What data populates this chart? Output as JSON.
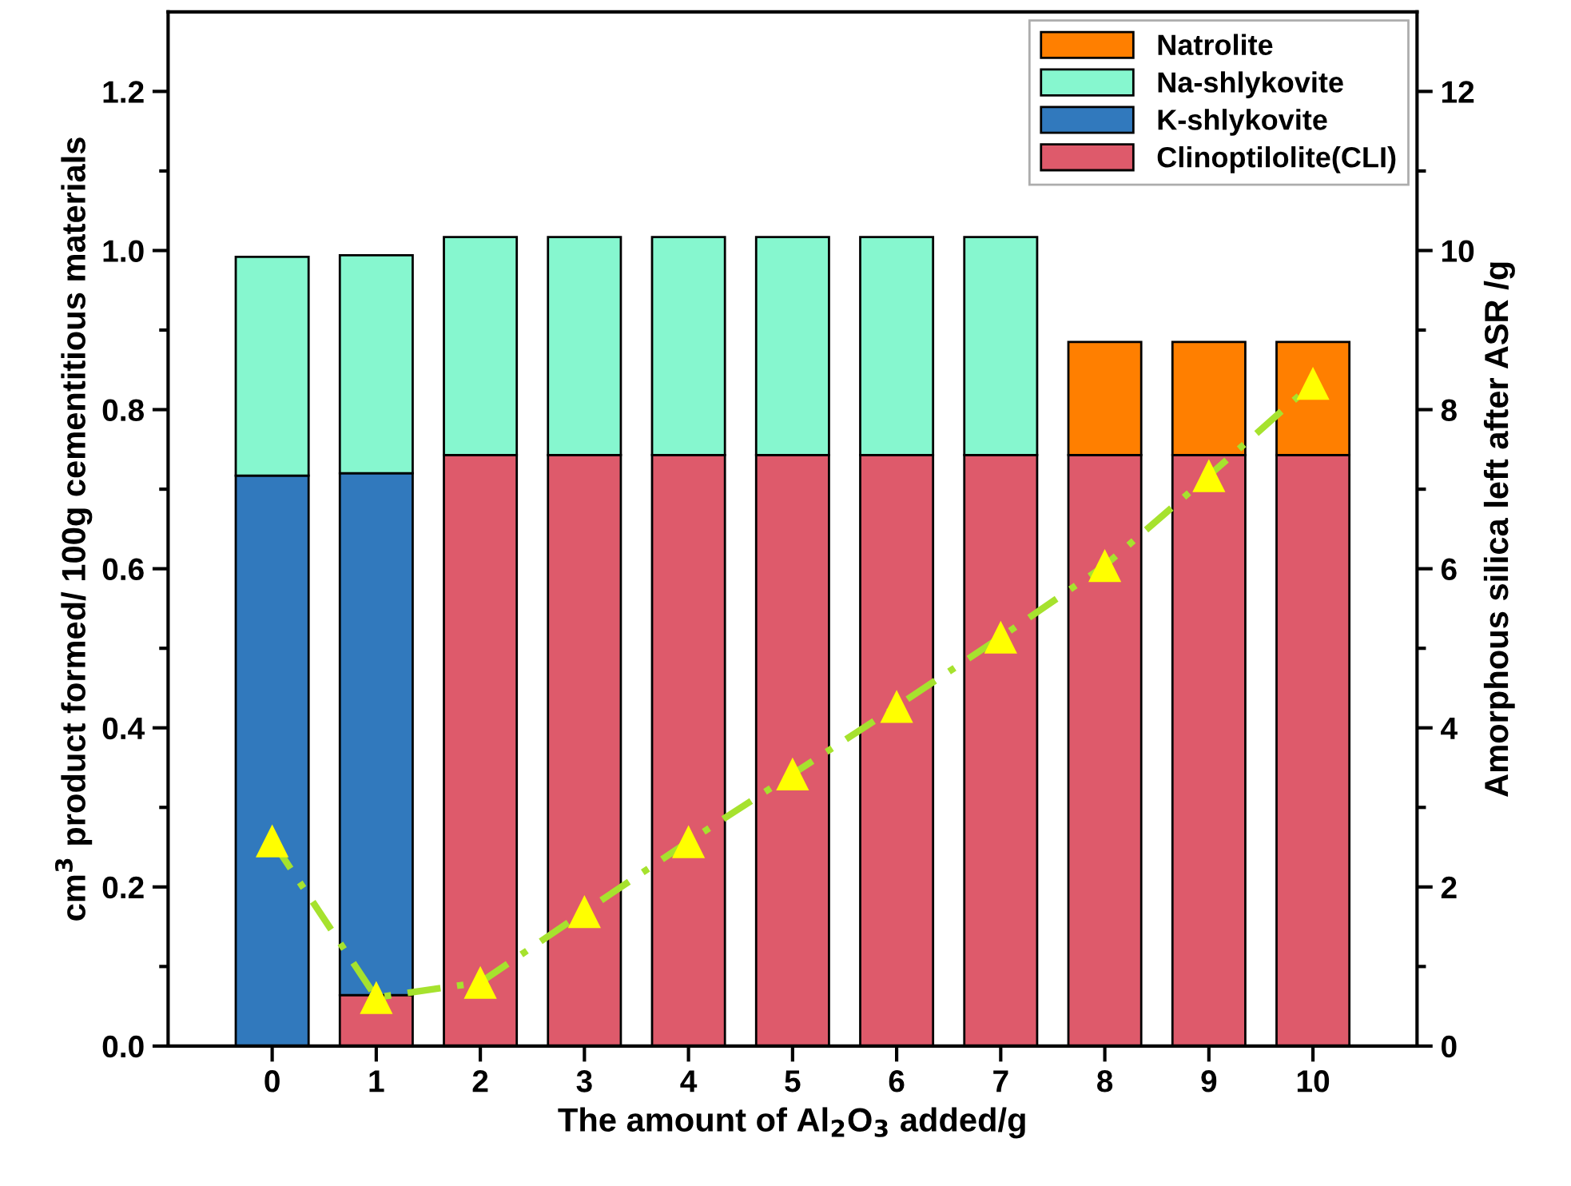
{
  "chart_data": {
    "type": "bar",
    "stacked": true,
    "xlabel": "The amount of Al$_{2}$O$_{3}$ added/g",
    "ylabel": "cm$^{3}$ product formed/ 100g cementitious materials",
    "y2label": "Amorphous silica left after ASR /g",
    "categories": [
      "0",
      "1",
      "2",
      "3",
      "4",
      "5",
      "6",
      "7",
      "8",
      "9",
      "10"
    ],
    "series": [
      {
        "name": "Clinoptilolite(CLI)",
        "color": "#de5a6b",
        "values": [
          null,
          0.064,
          0.743,
          0.743,
          0.743,
          0.743,
          0.743,
          0.743,
          0.743,
          0.743,
          0.743
        ]
      },
      {
        "name": "K-shlykovite",
        "color": "#3179bd",
        "values": [
          0.717,
          0.656,
          null,
          null,
          null,
          null,
          null,
          null,
          null,
          null,
          null
        ]
      },
      {
        "name": "Na-shlykovite",
        "color": "#86f7cf",
        "values": [
          0.275,
          0.274,
          0.274,
          0.274,
          0.274,
          0.274,
          0.274,
          0.274,
          null,
          null,
          null
        ]
      },
      {
        "name": "Natrolite",
        "color": "#ff7f00",
        "values": [
          null,
          null,
          null,
          null,
          null,
          null,
          null,
          null,
          0.142,
          0.142,
          0.142
        ]
      },
      {
        "type": "line",
        "axis": "y2",
        "color": "#a6e22e",
        "colors": [
          "#ffff00",
          "#ffff00",
          "#ffff00",
          "#ffff00",
          "#ffff00",
          "#ffff00",
          "#ffff00",
          "#ffff00",
          "#ffff00",
          "#ffff00",
          "#ffff00"
        ],
        "marker": "triangle",
        "line_style": "dashed",
        "values": [
          2.58,
          0.61,
          0.8,
          1.69,
          2.57,
          3.42,
          4.27,
          5.14,
          6.04,
          7.17,
          8.33
        ]
      }
    ],
    "ylim": [
      0,
      1.3
    ],
    "yticks": [
      {
        "value": 0,
        "label": "0.0"
      },
      {
        "value": 0.1,
        "label": null
      },
      {
        "value": 0.2,
        "label": "0.2"
      },
      {
        "value": 0.3,
        "label": null
      },
      {
        "value": 0.4,
        "label": "0.4"
      },
      {
        "value": 0.5,
        "label": null
      },
      {
        "value": 0.6,
        "label": "0.6"
      },
      {
        "value": 0.7,
        "label": null
      },
      {
        "value": 0.8,
        "label": "0.8"
      },
      {
        "value": 0.9,
        "label": null
      },
      {
        "value": 1.0,
        "label": "1.0"
      },
      {
        "value": 1.1,
        "label": null
      },
      {
        "value": 1.2,
        "label": "1.2"
      }
    ],
    "y2lim": [
      0,
      13
    ],
    "y2ticks": [
      0,
      {
        "value": 1,
        "label": null
      },
      2,
      {
        "value": 3,
        "label": null
      },
      4,
      {
        "value": 5,
        "label": null
      },
      6,
      {
        "value": 7,
        "label": null
      },
      8,
      {
        "value": 9,
        "label": null
      },
      10,
      {
        "value": 11,
        "label": null
      },
      12
    ],
    "legend": "top right",
    "grid": false
  }
}
